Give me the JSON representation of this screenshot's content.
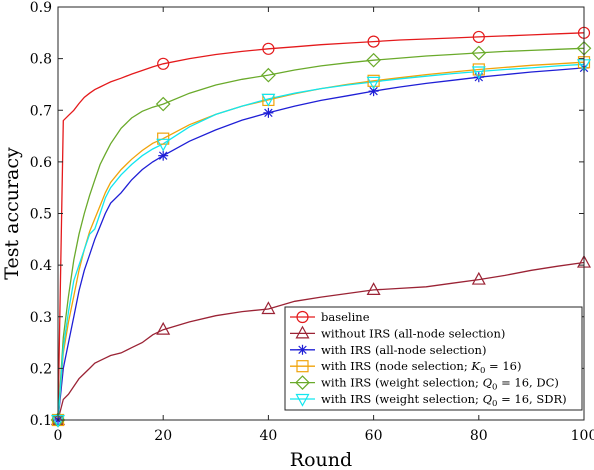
{
  "chart_data": {
    "type": "line",
    "title": "",
    "xlabel": "Round",
    "ylabel": "Test accuracy",
    "xlim": [
      0,
      100
    ],
    "ylim": [
      0.1,
      0.9
    ],
    "xticks": [
      0,
      20,
      40,
      60,
      80,
      100
    ],
    "yticks": [
      0.1,
      0.2,
      0.3,
      0.4,
      0.5,
      0.6,
      0.7,
      0.8,
      0.9
    ],
    "grid": false,
    "legend_position": "bottom-right",
    "marker_x": [
      0,
      20,
      40,
      60,
      80,
      100
    ],
    "x": [
      0,
      1,
      2,
      3,
      4,
      5,
      6,
      7,
      8,
      9,
      10,
      12,
      14,
      16,
      18,
      20,
      25,
      30,
      35,
      40,
      45,
      50,
      55,
      60,
      65,
      70,
      75,
      80,
      85,
      90,
      95,
      100
    ],
    "series": [
      {
        "name": "baseline",
        "color": "#e41a1c",
        "marker": "circle",
        "values": [
          0.1,
          0.68,
          0.69,
          0.7,
          0.713,
          0.725,
          0.733,
          0.74,
          0.745,
          0.75,
          0.755,
          0.762,
          0.77,
          0.777,
          0.784,
          0.79,
          0.8,
          0.808,
          0.814,
          0.819,
          0.823,
          0.827,
          0.83,
          0.833,
          0.836,
          0.838,
          0.84,
          0.842,
          0.844,
          0.846,
          0.848,
          0.85
        ]
      },
      {
        "name": "without IRS (all-node selection)",
        "color": "#9b2335",
        "marker": "triangle",
        "values": [
          0.1,
          0.14,
          0.15,
          0.165,
          0.18,
          0.19,
          0.2,
          0.21,
          0.215,
          0.22,
          0.225,
          0.23,
          0.24,
          0.25,
          0.265,
          0.275,
          0.29,
          0.302,
          0.31,
          0.315,
          0.33,
          0.338,
          0.345,
          0.352,
          0.355,
          0.358,
          0.365,
          0.372,
          0.38,
          0.39,
          0.398,
          0.405
        ]
      },
      {
        "name": "with IRS (all-node selection)",
        "color": "#1f1fd6",
        "marker": "asterisk",
        "values": [
          0.1,
          0.2,
          0.25,
          0.3,
          0.35,
          0.39,
          0.42,
          0.45,
          0.475,
          0.5,
          0.52,
          0.54,
          0.565,
          0.585,
          0.6,
          0.612,
          0.64,
          0.662,
          0.681,
          0.695,
          0.708,
          0.719,
          0.728,
          0.737,
          0.745,
          0.752,
          0.758,
          0.764,
          0.769,
          0.774,
          0.778,
          0.782
        ]
      },
      {
        "name": "with IRS (node selection; K0 = 16)",
        "color": "#f0a30a",
        "marker": "square",
        "values": [
          0.1,
          0.23,
          0.29,
          0.34,
          0.39,
          0.43,
          0.465,
          0.49,
          0.515,
          0.54,
          0.56,
          0.585,
          0.605,
          0.622,
          0.636,
          0.645,
          0.672,
          0.692,
          0.708,
          0.72,
          0.732,
          0.742,
          0.75,
          0.757,
          0.763,
          0.769,
          0.774,
          0.779,
          0.783,
          0.787,
          0.79,
          0.793
        ]
      },
      {
        "name": "with IRS (weight selection; Q0 = 16, DC)",
        "color": "#6aaa2b",
        "marker": "diamond",
        "values": [
          0.1,
          0.26,
          0.34,
          0.41,
          0.46,
          0.5,
          0.535,
          0.565,
          0.595,
          0.615,
          0.635,
          0.665,
          0.685,
          0.698,
          0.706,
          0.712,
          0.733,
          0.749,
          0.76,
          0.768,
          0.778,
          0.786,
          0.792,
          0.797,
          0.801,
          0.805,
          0.808,
          0.811,
          0.814,
          0.816,
          0.818,
          0.82
        ]
      },
      {
        "name": "with IRS (weight selection; Q0 = 16, SDR)",
        "color": "#12e6ef",
        "marker": "triangle-down",
        "values": [
          0.1,
          0.24,
          0.31,
          0.37,
          0.4,
          0.43,
          0.46,
          0.47,
          0.5,
          0.53,
          0.55,
          0.575,
          0.595,
          0.612,
          0.625,
          0.635,
          0.668,
          0.692,
          0.708,
          0.722,
          0.733,
          0.742,
          0.749,
          0.755,
          0.761,
          0.766,
          0.771,
          0.775,
          0.779,
          0.782,
          0.786,
          0.789
        ]
      }
    ]
  },
  "legend": {
    "items": [
      {
        "text": "baseline"
      },
      {
        "text": "without IRS (all-node selection)"
      },
      {
        "text": "with IRS (all-node selection)"
      },
      {
        "pre": "with IRS (node selection; ",
        "sym": "K",
        "sub": "0",
        "post": " = 16)"
      },
      {
        "pre": "with IRS (weight selection; ",
        "sym": "Q",
        "sub": "0",
        "post": " = 16, DC)"
      },
      {
        "pre": "with IRS (weight selection; ",
        "sym": "Q",
        "sub": "0",
        "post": " = 16, SDR)"
      }
    ]
  }
}
